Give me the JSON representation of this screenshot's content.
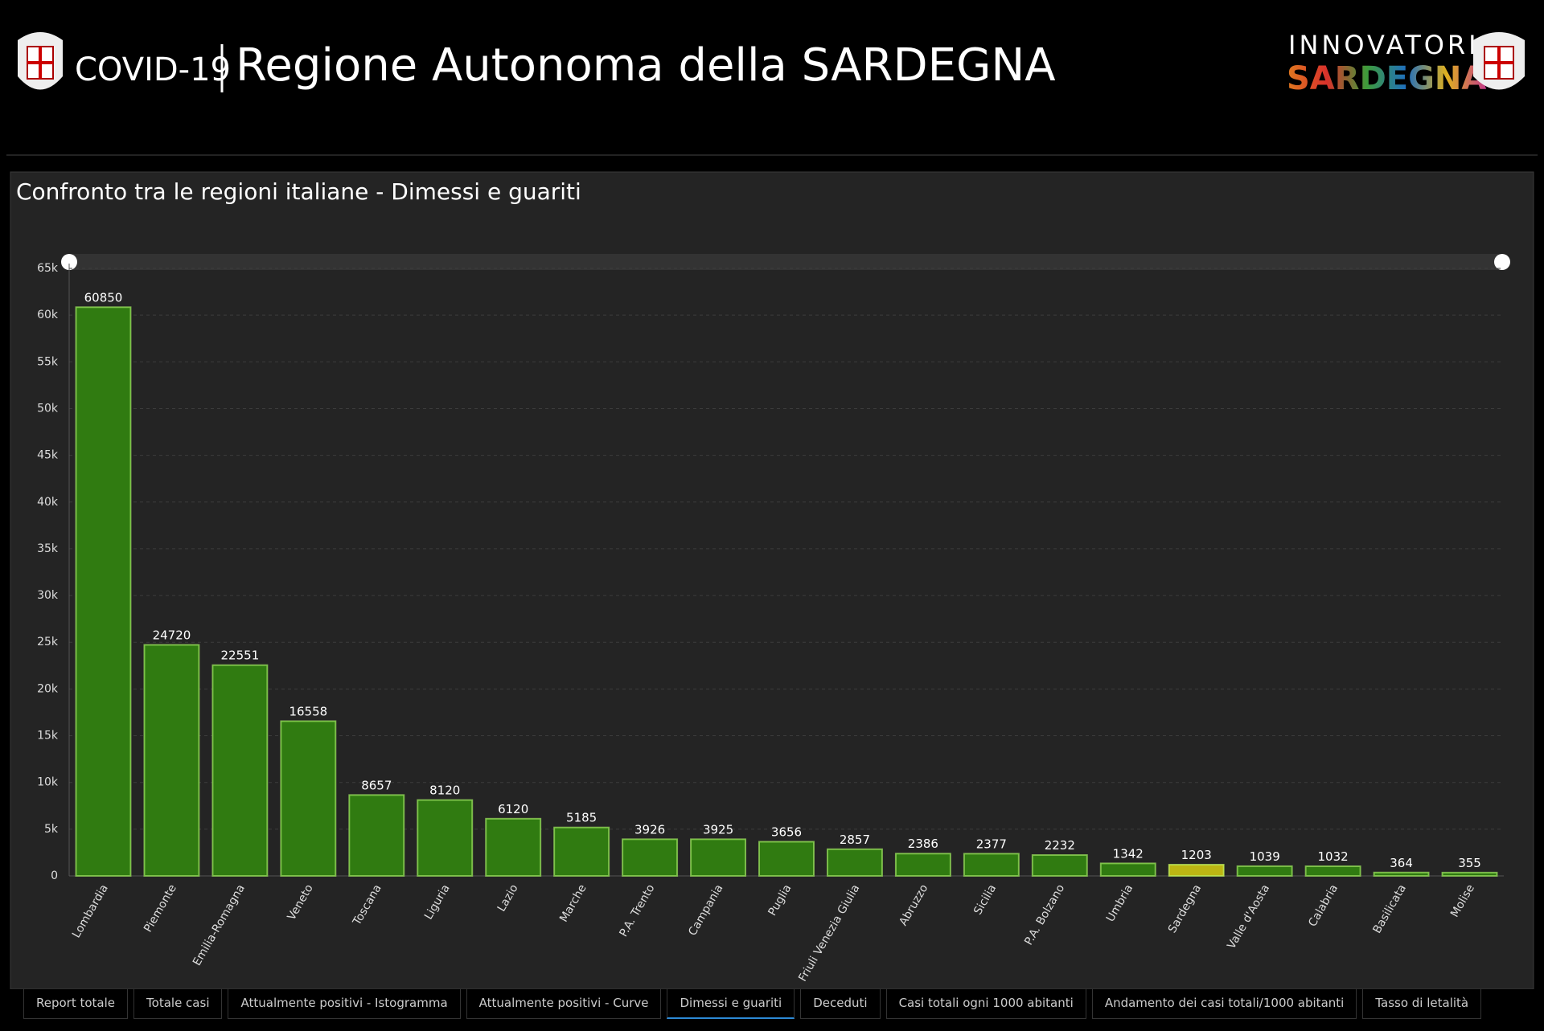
{
  "header": {
    "covid": "COVID-19",
    "title": "Regione Autonoma della SARDEGNA",
    "logo_top": "INNOVATORI",
    "logo_bottom": "SARDEGNA"
  },
  "chart_data": {
    "type": "bar",
    "title": "Confronto tra le regioni italiane - Dimessi e guariti",
    "categories": [
      "Lombardia",
      "Piemonte",
      "Emilia-Romagna",
      "Veneto",
      "Toscana",
      "Liguria",
      "Lazio",
      "Marche",
      "P.A. Trento",
      "Campania",
      "Puglia",
      "Friuli Venezia Giulia",
      "Abruzzo",
      "Sicilia",
      "P.A. Bolzano",
      "Umbria",
      "Sardegna",
      "Valle d'Aosta",
      "Calabria",
      "Basilicata",
      "Molise"
    ],
    "values": [
      60850,
      24720,
      22551,
      16558,
      8657,
      8120,
      6120,
      5185,
      3926,
      3925,
      3656,
      2857,
      2386,
      2377,
      2232,
      1342,
      1203,
      1039,
      1032,
      364,
      355
    ],
    "colors": [
      "#2e7510",
      "#2e7510",
      "#2e7510",
      "#2e7510",
      "#2e7510",
      "#2e7510",
      "#2e7510",
      "#2e7510",
      "#2e7510",
      "#2e7510",
      "#2e7510",
      "#2e7510",
      "#2e7510",
      "#2e7510",
      "#2e7510",
      "#2e7510",
      "#b3ad12",
      "#2e7510",
      "#2e7510",
      "#2e7510",
      "#2e7510"
    ],
    "ylim": [
      0,
      65000
    ],
    "yticks": [
      0,
      {
        "value": 5000,
        "label": "5k"
      },
      {
        "value": 10000,
        "label": "10k"
      },
      {
        "value": 15000,
        "label": "15k"
      },
      {
        "value": 20000,
        "label": "20k"
      },
      {
        "value": 25000,
        "label": "25k"
      },
      {
        "value": 30000,
        "label": "30k"
      },
      {
        "value": 35000,
        "label": "35k"
      },
      {
        "value": 40000,
        "label": "40k"
      },
      {
        "value": 45000,
        "label": "45k"
      },
      {
        "value": 50000,
        "label": "50k"
      },
      {
        "value": 55000,
        "label": "55k"
      },
      {
        "value": 60000,
        "label": "60k"
      },
      {
        "value": 65000,
        "label": "65k"
      }
    ],
    "grid": true
  },
  "tabs": [
    "Report totale",
    "Totale casi",
    "Attualmente positivi - Istogramma",
    "Attualmente positivi - Curve",
    "Dimessi e guariti",
    "Deceduti",
    "Casi totali ogni 1000 abitanti",
    "Andamento dei casi totali/1000 abitanti",
    "Tasso di letalità"
  ]
}
